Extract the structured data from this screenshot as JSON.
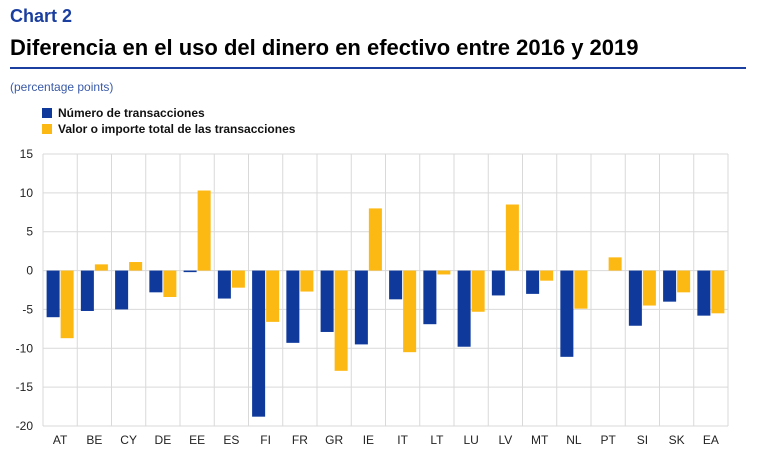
{
  "header": {
    "chart_label": "Chart 2",
    "title": "Diferencia en el uso del dinero en efectivo entre 2016 y 2019",
    "units": "(percentage points)"
  },
  "colors": {
    "series1": "#0f3a9c",
    "series2": "#fdb913",
    "grid": "#d9d9d9",
    "title_accent": "#1b3fa0"
  },
  "chart_data": {
    "type": "bar",
    "title": "Diferencia en el uso del dinero en efectivo entre 2016 y 2019",
    "ylabel": "(percentage points)",
    "xlabel": "",
    "ylim": [
      -20,
      15
    ],
    "yticks": [
      15,
      10,
      5,
      0,
      -5,
      -10,
      -15,
      -20
    ],
    "grid": true,
    "legend": "top-left",
    "categories": [
      "AT",
      "BE",
      "CY",
      "DE",
      "EE",
      "ES",
      "FI",
      "FR",
      "GR",
      "IE",
      "IT",
      "LT",
      "LU",
      "LV",
      "MT",
      "NL",
      "PT",
      "SI",
      "SK",
      "EA"
    ],
    "series": [
      {
        "name": "Número de transacciones",
        "color": "#0f3a9c",
        "values": [
          -6.0,
          -5.2,
          -5.0,
          -2.8,
          -0.2,
          -3.6,
          -18.8,
          -9.3,
          -7.9,
          -9.5,
          -3.7,
          -6.9,
          -9.8,
          -3.2,
          -3.0,
          -11.1,
          0.0,
          -7.1,
          -4.0,
          -5.8
        ]
      },
      {
        "name": "Valor o importe total de las transacciones",
        "color": "#fdb913",
        "values": [
          -8.7,
          0.8,
          1.1,
          -3.4,
          10.3,
          -2.2,
          -6.6,
          -2.7,
          -12.9,
          8.0,
          -10.5,
          -0.5,
          -5.3,
          8.5,
          -1.3,
          -4.9,
          1.7,
          -4.5,
          -2.8,
          -5.5
        ]
      }
    ]
  }
}
